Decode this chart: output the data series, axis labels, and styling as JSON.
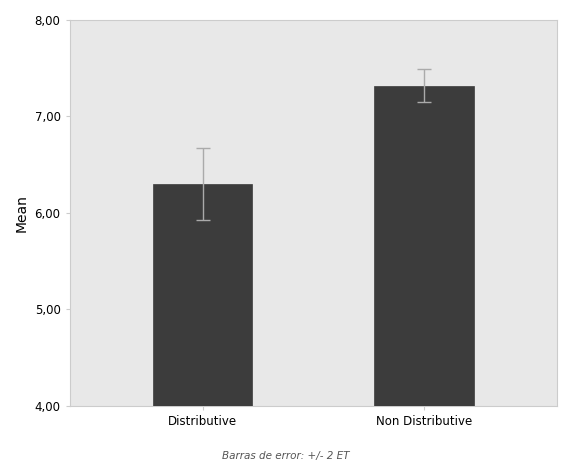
{
  "categories": [
    "Distributive",
    "Non Distributive"
  ],
  "values": [
    6.3,
    7.32
  ],
  "errors": [
    0.37,
    0.17
  ],
  "bar_color": "#3c3c3c",
  "bar_edge_color": "#3c3c3c",
  "error_color": "#aaaaaa",
  "outer_bg_color": "#ffffff",
  "plot_bg_color": "#e8e8e8",
  "border_color": "#cccccc",
  "ylabel": "Mean",
  "ylim": [
    4.0,
    8.0
  ],
  "yticks": [
    4.0,
    5.0,
    6.0,
    7.0,
    8.0
  ],
  "ytick_labels": [
    "4,00",
    "5,00",
    "6,00",
    "7,00",
    "8,00"
  ],
  "footnote": "Barras de error: +/- 2 ET",
  "bar_width": 0.45,
  "ylabel_fontsize": 10,
  "tick_fontsize": 8.5,
  "footnote_fontsize": 7.5
}
